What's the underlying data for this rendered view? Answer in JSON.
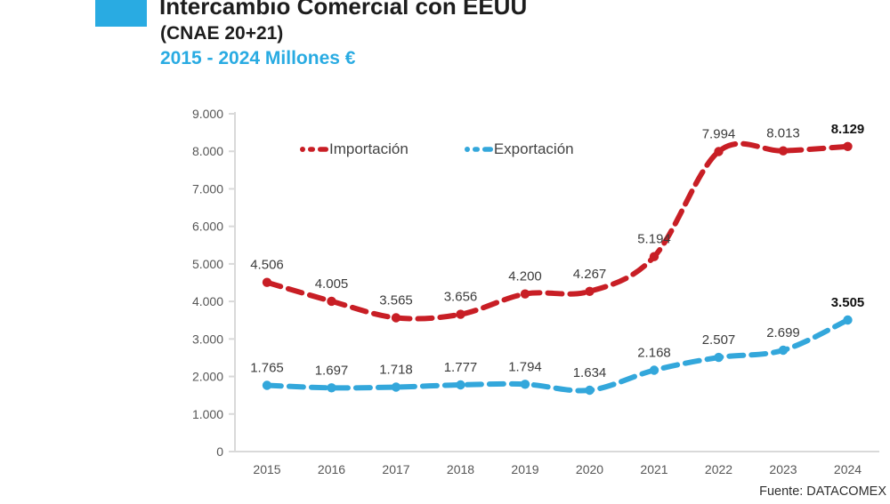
{
  "header": {
    "title": "Intercambio Comercial con EEUU",
    "subtitle": "(CNAE 20+21)",
    "period": "2015 - 2024 Millones €"
  },
  "source": "Fuente: DATACOMEX",
  "colors": {
    "accent": "#29ABE2",
    "import_line": "#C81E25",
    "export_line": "#33A7DB",
    "axis_line": "#D9D9D9",
    "tick_text": "#565656",
    "label_text": "#3B3B3B",
    "label_text_final": "#111111"
  },
  "chart_data": {
    "type": "line",
    "title": "Intercambio Comercial con EEUU (CNAE 20+21), 2015 - 2024, Millones €",
    "categories": [
      "2015",
      "2016",
      "2017",
      "2018",
      "2019",
      "2020",
      "2021",
      "2022",
      "2023",
      "2024"
    ],
    "series": [
      {
        "name": "Importación",
        "slug": "importacion",
        "color": "#C81E25",
        "values": [
          4506,
          4005,
          3565,
          3656,
          4200,
          4267,
          5194,
          7994,
          8013,
          8129
        ],
        "labels": [
          "4.506",
          "4.005",
          "3.565",
          "3.656",
          "4.200",
          "4.267",
          "5.194",
          "7.994",
          "8.013",
          "8.129"
        ]
      },
      {
        "name": "Exportación",
        "slug": "exportacion",
        "color": "#33A7DB",
        "values": [
          1765,
          1697,
          1718,
          1777,
          1794,
          1634,
          2168,
          2507,
          2699,
          3505
        ],
        "labels": [
          "1.765",
          "1.697",
          "1.718",
          "1.777",
          "1.794",
          "1.634",
          "2.168",
          "2.507",
          "2.699",
          "3.505"
        ]
      }
    ],
    "xlabel": "",
    "ylabel": "",
    "ylim": [
      0,
      9000
    ],
    "ytick_step": 1000,
    "ytick_labels": [
      "0",
      "1.000",
      "2.000",
      "3.000",
      "4.000",
      "5.000",
      "6.000",
      "7.000",
      "8.000",
      "9.000"
    ],
    "grid": false,
    "legend_position": "top-inside",
    "line_style": "dashed-round-with-dot-markers"
  }
}
